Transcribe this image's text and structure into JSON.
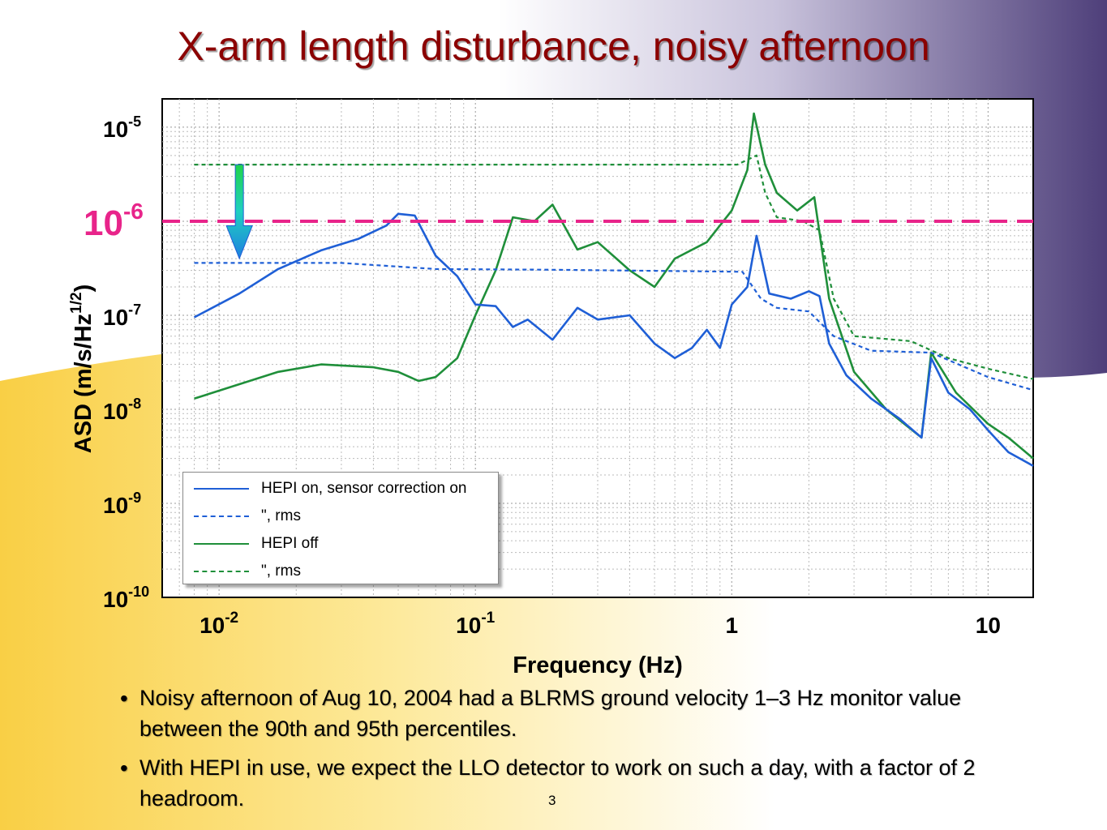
{
  "slide": {
    "title": "X-arm length disturbance, noisy afternoon",
    "page_number": "3",
    "bullets": [
      "Noisy afternoon of Aug 10, 2004 had a BLRMS ground velocity 1–3 Hz monitor value between the 90th and 95th percentiles.",
      "With HEPI in use, we expect the LLO detector to work on such a day, with a factor of 2 headroom."
    ],
    "colors": {
      "title": "#8b0000",
      "bg_purple": "#4e3f7a",
      "bg_yellow": "#f9cf45"
    }
  },
  "chart_data": {
    "type": "line",
    "xlabel": "Frequency (Hz)",
    "ylabel": "ASD (m/s/Hz",
    "ylabel_exp": "1/2",
    "ylabel_close": ")",
    "xscale": "log",
    "yscale": "log",
    "xlim": [
      0.006,
      15
    ],
    "ylim": [
      1e-10,
      2e-05
    ],
    "grid": true,
    "legend_position": "bottom-left",
    "x_ticks": [
      {
        "value": 0.01,
        "base": "10",
        "exp": "-2"
      },
      {
        "value": 0.1,
        "base": "10",
        "exp": "-1"
      },
      {
        "value": 1,
        "base": "1",
        "exp": ""
      },
      {
        "value": 10,
        "base": "10",
        "exp": ""
      }
    ],
    "y_ticks": [
      {
        "value": 1e-05,
        "base": "10",
        "exp": "-5"
      },
      {
        "value": 1e-07,
        "base": "10",
        "exp": "-7"
      },
      {
        "value": 1e-08,
        "base": "10",
        "exp": "-8"
      },
      {
        "value": 1e-09,
        "base": "10",
        "exp": "-9"
      },
      {
        "value": 1e-10,
        "base": "10",
        "exp": "-10"
      }
    ],
    "threshold": {
      "value": 1e-06,
      "base": "10",
      "exp": "-6",
      "color": "#e8248a"
    },
    "annotation_arrow": {
      "x": 0.012,
      "y_from": 4e-06,
      "y_to": 4e-07
    },
    "series": [
      {
        "name": "HEPI on, sensor correction on",
        "color": "#1f5fd6",
        "dash": false,
        "points": [
          [
            0.008,
            9.5e-08
          ],
          [
            0.012,
            1.7e-07
          ],
          [
            0.017,
            3.1e-07
          ],
          [
            0.025,
            4.9e-07
          ],
          [
            0.035,
            6.5e-07
          ],
          [
            0.045,
            9e-07
          ],
          [
            0.05,
            1.2e-06
          ],
          [
            0.058,
            1.15e-06
          ],
          [
            0.07,
            4.3e-07
          ],
          [
            0.085,
            2.6e-07
          ],
          [
            0.1,
            1.3e-07
          ],
          [
            0.12,
            1.25e-07
          ],
          [
            0.14,
            7.5e-08
          ],
          [
            0.16,
            9e-08
          ],
          [
            0.2,
            5.5e-08
          ],
          [
            0.25,
            1.2e-07
          ],
          [
            0.3,
            9e-08
          ],
          [
            0.4,
            1e-07
          ],
          [
            0.5,
            5e-08
          ],
          [
            0.6,
            3.5e-08
          ],
          [
            0.7,
            4.5e-08
          ],
          [
            0.8,
            7e-08
          ],
          [
            0.9,
            4.5e-08
          ],
          [
            1.0,
            1.3e-07
          ],
          [
            1.15,
            2e-07
          ],
          [
            1.25,
            7e-07
          ],
          [
            1.4,
            1.7e-07
          ],
          [
            1.7,
            1.5e-07
          ],
          [
            2.0,
            1.8e-07
          ],
          [
            2.2,
            1.6e-07
          ],
          [
            2.4,
            5e-08
          ],
          [
            2.8,
            2.3e-08
          ],
          [
            3.5,
            1.3e-08
          ],
          [
            4.5,
            8e-09
          ],
          [
            5.5,
            5e-09
          ],
          [
            6.0,
            3.5e-08
          ],
          [
            7.0,
            1.5e-08
          ],
          [
            8.5,
            1e-08
          ],
          [
            10,
            6e-09
          ],
          [
            12,
            3.5e-09
          ],
          [
            15,
            2.5e-09
          ]
        ]
      },
      {
        "name": "\", rms",
        "color": "#1f5fd6",
        "dash": true,
        "points": [
          [
            0.008,
            3.6e-07
          ],
          [
            0.03,
            3.6e-07
          ],
          [
            0.07,
            3.1e-07
          ],
          [
            0.2,
            3.05e-07
          ],
          [
            1.1,
            2.9e-07
          ],
          [
            1.3,
            1.5e-07
          ],
          [
            1.5,
            1.2e-07
          ],
          [
            2.0,
            1.1e-07
          ],
          [
            2.5,
            6e-08
          ],
          [
            3.5,
            4.2e-08
          ],
          [
            6.0,
            4e-08
          ],
          [
            10,
            2.2e-08
          ],
          [
            15,
            1.6e-08
          ]
        ]
      },
      {
        "name": "HEPI off",
        "color": "#1f8f3a",
        "dash": false,
        "points": [
          [
            0.008,
            1.3e-08
          ],
          [
            0.017,
            2.5e-08
          ],
          [
            0.025,
            3e-08
          ],
          [
            0.04,
            2.8e-08
          ],
          [
            0.05,
            2.5e-08
          ],
          [
            0.06,
            2e-08
          ],
          [
            0.07,
            2.2e-08
          ],
          [
            0.085,
            3.5e-08
          ],
          [
            0.1,
            1e-07
          ],
          [
            0.12,
            3e-07
          ],
          [
            0.14,
            1.1e-06
          ],
          [
            0.17,
            1e-06
          ],
          [
            0.2,
            1.5e-06
          ],
          [
            0.25,
            5e-07
          ],
          [
            0.3,
            6e-07
          ],
          [
            0.4,
            3e-07
          ],
          [
            0.5,
            2e-07
          ],
          [
            0.6,
            4e-07
          ],
          [
            0.8,
            6e-07
          ],
          [
            1.0,
            1.3e-06
          ],
          [
            1.15,
            3.5e-06
          ],
          [
            1.22,
            1.4e-05
          ],
          [
            1.35,
            4e-06
          ],
          [
            1.5,
            2e-06
          ],
          [
            1.8,
            1.3e-06
          ],
          [
            2.1,
            1.8e-06
          ],
          [
            2.4,
            1.5e-07
          ],
          [
            3.0,
            2.5e-08
          ],
          [
            4.0,
            1e-08
          ],
          [
            5.5,
            5e-09
          ],
          [
            6.0,
            4e-08
          ],
          [
            7.5,
            1.5e-08
          ],
          [
            10,
            7e-09
          ],
          [
            12,
            5e-09
          ],
          [
            15,
            3e-09
          ]
        ]
      },
      {
        "name": "\", rms",
        "color": "#1f8f3a",
        "dash": true,
        "points": [
          [
            0.008,
            4e-06
          ],
          [
            0.3,
            4e-06
          ],
          [
            1.05,
            4e-06
          ],
          [
            1.25,
            5e-06
          ],
          [
            1.35,
            2e-06
          ],
          [
            1.5,
            1.1e-06
          ],
          [
            1.9,
            1e-06
          ],
          [
            2.2,
            8e-07
          ],
          [
            2.5,
            1.5e-07
          ],
          [
            3.0,
            6e-08
          ],
          [
            5.0,
            5.3e-08
          ],
          [
            7.0,
            3.5e-08
          ],
          [
            10,
            2.7e-08
          ],
          [
            15,
            2.1e-08
          ]
        ]
      }
    ]
  }
}
